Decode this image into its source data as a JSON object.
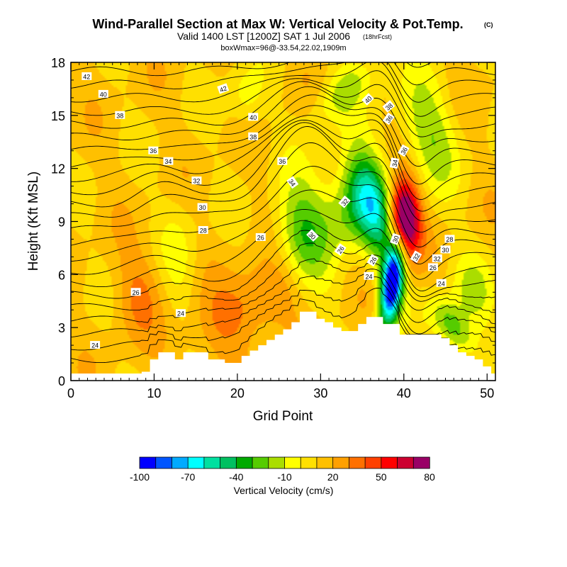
{
  "chart_data": {
    "type": "heatmap",
    "title": "Wind-Parallel Section at Max W: Vertical Velocity & Pot.Temp.",
    "title_mark": "(C)",
    "subtitle": "Valid 1400 LST [1200Z] SAT 1 Jul 2006",
    "subtitle_note": "(18hrFcst)",
    "subsubtitle": "boxWmax=96@-33.54,22.02,1909m",
    "xlabel": "Grid Point",
    "ylabel": "Height (Kft MSL)",
    "xlim": [
      0,
      51
    ],
    "ylim": [
      0,
      18
    ],
    "xticks": [
      "0",
      "10",
      "20",
      "30",
      "40",
      "50"
    ],
    "yticks": [
      "0",
      "3",
      "6",
      "9",
      "12",
      "15",
      "18"
    ],
    "colorbar": {
      "label": "Vertical Velocity (cm/s)",
      "tick_labels": [
        "-100",
        "-70",
        "-40",
        "-10",
        "20",
        "50",
        "80"
      ],
      "colors": [
        "#0000ff",
        "#0055ff",
        "#00aaff",
        "#00ffff",
        "#00e0a0",
        "#00c060",
        "#00aa00",
        "#55cc00",
        "#aadd00",
        "#ffff00",
        "#ffe000",
        "#ffc000",
        "#ffa000",
        "#ff7000",
        "#ff4000",
        "#ff0000",
        "#cc0030",
        "#990066"
      ]
    },
    "terrain_kft": [
      0.4,
      0.4,
      0.4,
      0.4,
      0.4,
      0.4,
      0.4,
      0.4,
      0.4,
      0.5,
      1.2,
      1.6,
      1.6,
      1.2,
      1.6,
      1.6,
      1.6,
      1.2,
      1.2,
      1.0,
      1.0,
      1.4,
      1.7,
      2.0,
      2.3,
      2.6,
      2.9,
      3.3,
      3.9,
      3.9,
      3.5,
      3.3,
      3.0,
      2.8,
      2.8,
      3.2,
      3.6,
      3.6,
      3.2,
      3.2,
      2.6,
      2.6,
      2.6,
      2.6,
      2.6,
      2.4,
      2.0,
      1.6,
      1.4,
      1.2,
      0.8,
      0.4
    ],
    "theta_label_values": [
      "24",
      "24",
      "26",
      "26",
      "28",
      "30",
      "32",
      "34",
      "36",
      "38",
      "40",
      "42",
      "24",
      "26",
      "30",
      "32",
      "34",
      "36",
      "38",
      "40",
      "42",
      "26",
      "30",
      "32",
      "34",
      "36",
      "38",
      "40",
      "24",
      "26",
      "32",
      "30",
      "28",
      "36"
    ],
    "theta_contour_levels": [
      22,
      23,
      24,
      25,
      26,
      27,
      28,
      29,
      30,
      31,
      32,
      33,
      34,
      35,
      36,
      37,
      38,
      39,
      40,
      41,
      42,
      43,
      44,
      45,
      46
    ],
    "wfeatures": [
      {
        "x": 38.6,
        "y": 5.5,
        "a": -110,
        "sx": 0.9,
        "sy": 1.8
      },
      {
        "x": 40.0,
        "y": 9.0,
        "a": 95,
        "sx": 0.8,
        "sy": 2.6
      },
      {
        "x": 36.6,
        "y": 9.5,
        "a": -50,
        "sx": 1.3,
        "sy": 3.0
      },
      {
        "x": 28.0,
        "y": 8.0,
        "a": -25,
        "sx": 1.2,
        "sy": 4.5
      },
      {
        "x": 34.0,
        "y": 10.0,
        "a": 20,
        "sx": 1.2,
        "sy": 3.5
      },
      {
        "x": 45.8,
        "y": 3.0,
        "a": -25,
        "sx": 1.0,
        "sy": 1.8
      },
      {
        "x": 43.0,
        "y": 14.0,
        "a": -30,
        "sx": 1.3,
        "sy": 4.0
      },
      {
        "x": 33.0,
        "y": 16.5,
        "a": 20,
        "sx": 1.5,
        "sy": 2.0
      },
      {
        "x": 22.5,
        "y": 4.5,
        "a": 15,
        "sx": 3.0,
        "sy": 3.0
      },
      {
        "x": 8.0,
        "y": 5.0,
        "a": 5,
        "sx": 1.0,
        "sy": 3.5
      },
      {
        "x": 21.0,
        "y": 16.0,
        "a": -10,
        "sx": 0.8,
        "sy": 2.5
      },
      {
        "x": 13.0,
        "y": 7.0,
        "a": 5,
        "sx": 0.8,
        "sy": 5.0
      },
      {
        "x": 48.5,
        "y": 5.0,
        "a": -20,
        "sx": 1.0,
        "sy": 3.0
      }
    ]
  }
}
